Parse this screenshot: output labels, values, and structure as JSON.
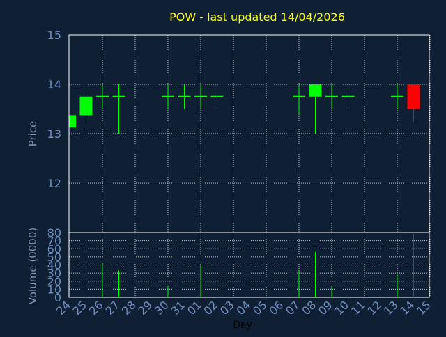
{
  "colors": {
    "background": "#0f2035",
    "frame": "#ffffff",
    "grid": "#c8c8c8",
    "title": "#ffff00",
    "axis_label": "#7f95b2",
    "tick_label": "#6e8fbf",
    "day_label": "#000000",
    "up": "#00ff00",
    "down": "#ff0000"
  },
  "chart_data": [
    {
      "type": "candlestick",
      "title": "POW - last updated 14/04/2026",
      "ylabel": "Price",
      "ylim": [
        11,
        15
      ],
      "yticks": [
        15,
        14,
        13,
        12
      ],
      "grid": true,
      "categories": [
        "24",
        "25",
        "26",
        "27",
        "28",
        "29",
        "30",
        "31",
        "01",
        "02",
        "03",
        "04",
        "05",
        "06",
        "07",
        "08",
        "09",
        "10",
        "11",
        "12",
        "13",
        "14",
        "15"
      ],
      "candles": [
        {
          "x": "24",
          "open": 13.125,
          "close": 13.375,
          "high": 13.375,
          "low": 13.125
        },
        {
          "x": "25",
          "open": 13.375,
          "close": 13.75,
          "high": 14.0,
          "low": 13.25
        },
        {
          "x": "26",
          "open": 13.75,
          "close": 13.75,
          "high": 14.0,
          "low": 13.5
        },
        {
          "x": "27",
          "open": 13.75,
          "close": 13.75,
          "high": 14.0,
          "low": 13.0
        },
        {
          "x": "30",
          "open": 13.75,
          "close": 13.75,
          "high": 14.0,
          "low": 13.5
        },
        {
          "x": "31",
          "open": 13.75,
          "close": 13.75,
          "high": 14.0,
          "low": 13.5
        },
        {
          "x": "01",
          "open": 13.75,
          "close": 13.75,
          "high": 14.0,
          "low": 13.5
        },
        {
          "x": "02",
          "open": 13.75,
          "close": 13.75,
          "high": 14.0,
          "low": 13.5
        },
        {
          "x": "07",
          "open": 13.75,
          "close": 13.75,
          "high": 14.0,
          "low": 13.375
        },
        {
          "x": "08",
          "open": 13.75,
          "close": 14.0,
          "high": 14.0,
          "low": 13.0
        },
        {
          "x": "09",
          "open": 13.75,
          "close": 13.75,
          "high": 14.0,
          "low": 13.5
        },
        {
          "x": "10",
          "open": 13.75,
          "close": 13.75,
          "high": 14.0,
          "low": 13.5
        },
        {
          "x": "13",
          "open": 13.75,
          "close": 13.75,
          "high": 14.0,
          "low": 13.5
        },
        {
          "x": "14",
          "open": 14.0,
          "close": 13.5,
          "high": 14.0,
          "low": 13.25
        }
      ]
    },
    {
      "type": "bar",
      "ylabel": "Volume (0000)",
      "xlabel": "Day",
      "ylim": [
        0,
        80
      ],
      "yticks": [
        80,
        70,
        60,
        50,
        40,
        30,
        20,
        10,
        0
      ],
      "grid": true,
      "categories": [
        "24",
        "25",
        "26",
        "27",
        "28",
        "29",
        "30",
        "31",
        "01",
        "02",
        "03",
        "04",
        "05",
        "06",
        "07",
        "08",
        "09",
        "10",
        "11",
        "12",
        "13",
        "14",
        "15"
      ],
      "values": [
        0,
        57,
        42,
        33,
        0,
        0,
        14,
        0,
        40,
        10,
        0,
        0,
        0,
        0,
        33,
        56,
        14,
        17,
        0,
        0,
        28,
        78,
        0
      ],
      "bar_colors": [
        "up",
        "up",
        "up",
        "up",
        "up",
        "up",
        "up",
        "up",
        "up",
        "up",
        "up",
        "up",
        "up",
        "up",
        "up",
        "up",
        "up",
        "up",
        "up",
        "up",
        "up",
        "down",
        "up"
      ]
    }
  ]
}
